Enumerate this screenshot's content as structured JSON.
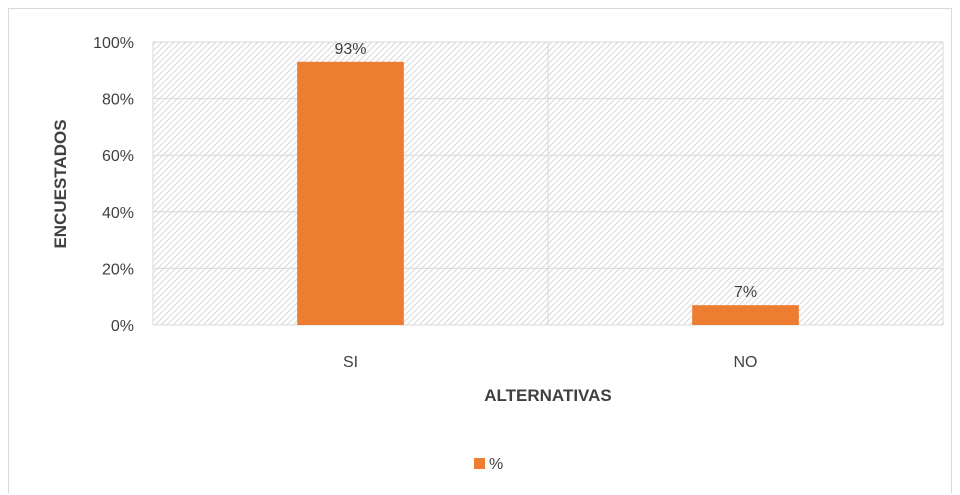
{
  "chart_data": {
    "type": "bar",
    "title": "",
    "categories": [
      "SI",
      "NO"
    ],
    "series": [
      {
        "name": "%",
        "values": [
          93,
          7
        ],
        "color": "#ed7d31"
      }
    ],
    "data_labels": [
      "93%",
      "7%"
    ],
    "xlabel": "ALTERNATIVAS",
    "ylabel": "ENCUESTADOS",
    "ylim": [
      0,
      100
    ],
    "y_ticks": [
      0,
      20,
      40,
      60,
      80,
      100
    ],
    "y_tick_labels": [
      "0%",
      "20%",
      "40%",
      "60%",
      "80%",
      "100%"
    ],
    "y_tick_format": "percent",
    "grid": true,
    "plot_background": "diagonal-hatch",
    "legend": {
      "position": "bottom",
      "entries": [
        "%"
      ]
    }
  }
}
